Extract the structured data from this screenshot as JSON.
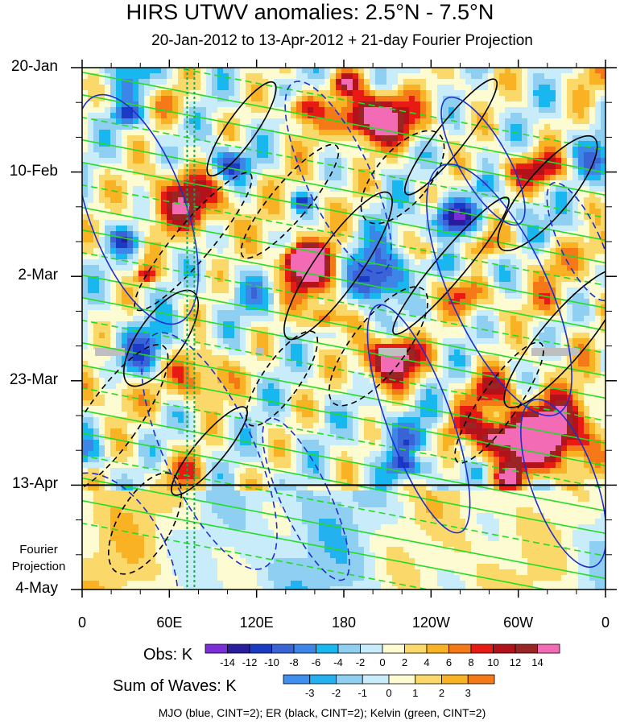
{
  "chart_data": {
    "type": "heatmap",
    "title": "HIRS UTWV anomalies: 2.5°N - 7.5°N",
    "subtitle": "20-Jan-2012 to 13-Apr-2012 + 21-day Fourier Projection",
    "x_ticks": [
      "0",
      "60E",
      "120E",
      "180",
      "120W",
      "60W",
      "0"
    ],
    "x_range": [
      0,
      360
    ],
    "y_ticks": [
      "20-Jan",
      "10-Feb",
      "2-Mar",
      "23-Mar",
      "13-Apr",
      "4-May"
    ],
    "y_range": [
      "2012-01-20",
      "2012-05-04"
    ],
    "observation_end": "13-Apr",
    "fourier_label": "Fourier\nProjection",
    "obs_colorbar": {
      "label": "Obs: K",
      "levels": [
        -14,
        -12,
        -10,
        -8,
        -6,
        -4,
        -2,
        0,
        2,
        4,
        6,
        8,
        10,
        12,
        14
      ],
      "colors": [
        "#7b2fd8",
        "#2a1d9c",
        "#1c3bc4",
        "#3a63d6",
        "#3c86e8",
        "#19b7f0",
        "#8fd0f2",
        "#c8ecfa",
        "#fdfbd2",
        "#fbd86a",
        "#f8b224",
        "#f57a17",
        "#e81b14",
        "#b3121a",
        "#9b2424",
        "#f26bb4"
      ]
    },
    "waves_colorbar": {
      "label": "Sum of Waves: K",
      "levels": [
        -3,
        -2,
        -1,
        0,
        1,
        2,
        3
      ],
      "colors": [
        "#3f8ff0",
        "#23b2ef",
        "#8fd0f2",
        "#c8ecfa",
        "#fdfbd2",
        "#fbd86a",
        "#f8b224",
        "#f57a17"
      ]
    },
    "contour_note": "MJO (blue, CINT=2); ER (black, CINT=2); Kelvin (green, CINT=2)",
    "contour_colors": {
      "mjo": "#1c2fd0",
      "er": "#000000",
      "kelvin": "#22dd22"
    },
    "marker_longitude": 75
  }
}
